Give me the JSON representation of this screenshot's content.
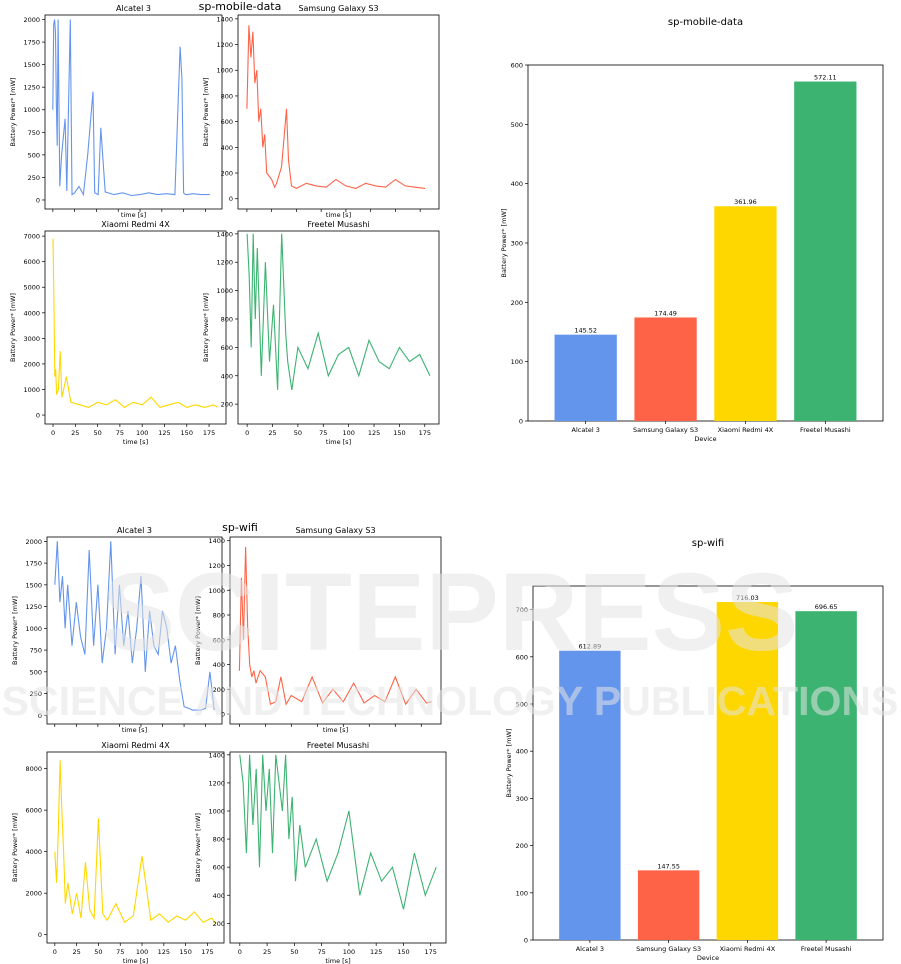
{
  "colors": {
    "blue": "#6495ED",
    "red": "#FF6347",
    "gold": "#FFD700",
    "green": "#3CB371",
    "watermark": "#d9d9d9"
  },
  "watermark": {
    "line1": "SCITEPRESS",
    "line2": "SCIENCE AND TECHNOLOGY PUBLICATIONS"
  },
  "chart_data": [
    {
      "type": "line",
      "suptitle": "sp-mobile-data",
      "title": "Alcatel 3",
      "xlabel": "time [s]",
      "ylabel": "Battery Power* [mW]",
      "color": "blue",
      "xlim": [
        -9,
        194
      ],
      "ylim": [
        -100,
        2050
      ],
      "yticks": [
        0,
        250,
        500,
        750,
        1000,
        1250,
        1500,
        1750,
        2000
      ],
      "xticks": [],
      "series": [
        {
          "x": [
            0,
            1,
            2,
            3,
            4,
            5,
            6,
            8,
            10,
            14,
            16,
            20,
            22,
            25,
            30,
            35,
            40,
            46,
            48,
            52,
            55,
            60,
            70,
            80,
            90,
            100,
            110,
            120,
            130,
            140,
            146,
            148,
            150,
            152,
            155,
            160,
            170,
            180
          ],
          "y": [
            1000,
            1950,
            2000,
            1850,
            1100,
            600,
            2000,
            150,
            500,
            900,
            100,
            2000,
            60,
            80,
            150,
            60,
            500,
            1200,
            80,
            60,
            800,
            90,
            60,
            80,
            50,
            60,
            80,
            60,
            70,
            60,
            1700,
            1350,
            80,
            60,
            60,
            70,
            60,
            60
          ]
        }
      ]
    },
    {
      "type": "line",
      "title": "Samsung Galaxy S3",
      "xlabel": "time [s]",
      "ylabel": "Battery Power* [mW]",
      "color": "red",
      "xlim": [
        -9,
        194
      ],
      "ylim": [
        -80,
        1430
      ],
      "yticks": [
        0,
        200,
        400,
        600,
        800,
        1000,
        1200,
        1400
      ],
      "xticks": [],
      "series": [
        {
          "x": [
            0,
            2,
            4,
            6,
            8,
            10,
            12,
            14,
            16,
            18,
            20,
            25,
            28,
            30,
            35,
            40,
            42,
            45,
            50,
            60,
            70,
            80,
            90,
            100,
            110,
            120,
            130,
            140,
            150,
            160,
            170,
            180
          ],
          "y": [
            700,
            1350,
            1100,
            1300,
            900,
            1000,
            600,
            700,
            400,
            500,
            200,
            150,
            90,
            120,
            250,
            700,
            300,
            100,
            80,
            120,
            100,
            90,
            150,
            100,
            80,
            120,
            100,
            90,
            150,
            100,
            90,
            80
          ]
        }
      ]
    },
    {
      "type": "line",
      "title": "Xiaomi Redmi 4X",
      "xlabel": "time [s]",
      "ylabel": "Battery Power* [mW]",
      "color": "gold",
      "xlim": [
        -9,
        194
      ],
      "ylim": [
        -350,
        7200
      ],
      "yticks": [
        0,
        1000,
        2000,
        3000,
        4000,
        5000,
        6000,
        7000
      ],
      "xticks": [
        0,
        25,
        50,
        75,
        100,
        125,
        150,
        175
      ],
      "series": [
        {
          "x": [
            0,
            1,
            2,
            3,
            4,
            6,
            8,
            10,
            15,
            20,
            30,
            40,
            50,
            60,
            70,
            80,
            90,
            100,
            110,
            120,
            130,
            140,
            150,
            160,
            170,
            180,
            185
          ],
          "y": [
            6900,
            4500,
            1500,
            1800,
            800,
            1000,
            2500,
            700,
            1500,
            500,
            400,
            300,
            500,
            400,
            600,
            300,
            500,
            400,
            700,
            300,
            400,
            500,
            300,
            400,
            300,
            400,
            300
          ]
        }
      ]
    },
    {
      "type": "line",
      "title": "Freetel Musashi",
      "xlabel": "time [s]",
      "ylabel": "Battery Power* [mW]",
      "color": "green",
      "xlim": [
        -9,
        189
      ],
      "ylim": [
        60,
        1420
      ],
      "yticks": [
        200,
        400,
        600,
        800,
        1000,
        1200,
        1400
      ],
      "xticks": [
        0,
        25,
        50,
        75,
        100,
        125,
        150,
        175
      ],
      "series": [
        {
          "x": [
            0,
            2,
            4,
            6,
            8,
            10,
            14,
            18,
            22,
            26,
            30,
            34,
            38,
            40,
            44,
            50,
            60,
            70,
            80,
            90,
            100,
            110,
            120,
            130,
            140,
            150,
            160,
            170,
            180
          ],
          "y": [
            1400,
            1100,
            600,
            1400,
            800,
            1300,
            400,
            1200,
            500,
            900,
            300,
            1400,
            700,
            500,
            300,
            600,
            450,
            700,
            400,
            550,
            600,
            400,
            650,
            500,
            450,
            600,
            500,
            550,
            400
          ]
        }
      ]
    },
    {
      "type": "bar",
      "title": "sp-mobile-data",
      "categories": [
        "Alcatel 3",
        "Samsung Galaxy S3",
        "Xiaomi Redmi 4X",
        "Freetel Musashi"
      ],
      "values": [
        145.52,
        174.49,
        361.96,
        572.11
      ],
      "value_labels": [
        "145.52",
        "174.49",
        "361.96",
        "572.11"
      ],
      "bar_colors": [
        "blue",
        "red",
        "gold",
        "green"
      ],
      "xlabel": "Device",
      "ylabel": "Battery Power* [mW]",
      "ylim": [
        0,
        600
      ],
      "yticks": [
        0,
        100,
        200,
        300,
        400,
        500,
        600
      ]
    },
    {
      "type": "line",
      "suptitle": "sp-wifi",
      "title": "Alcatel 3",
      "xlabel": "time [s]",
      "ylabel": "Battery Power* [mW]",
      "color": "blue",
      "xlim": [
        -9,
        194
      ],
      "ylim": [
        -100,
        2050
      ],
      "yticks": [
        0,
        250,
        500,
        750,
        1000,
        1250,
        1500,
        1750,
        2000
      ],
      "xticks": [],
      "series": [
        {
          "x": [
            0,
            3,
            6,
            9,
            12,
            15,
            20,
            25,
            30,
            35,
            40,
            45,
            50,
            55,
            60,
            65,
            70,
            75,
            80,
            85,
            90,
            95,
            100,
            105,
            110,
            115,
            120,
            125,
            130,
            135,
            140,
            145,
            150,
            155,
            160,
            170,
            175,
            180,
            185
          ],
          "y": [
            1500,
            2000,
            1300,
            1600,
            1000,
            1500,
            800,
            1300,
            900,
            700,
            1900,
            800,
            1500,
            600,
            1000,
            2000,
            700,
            1500,
            800,
            1200,
            600,
            1000,
            1600,
            500,
            1200,
            800,
            700,
            1200,
            1000,
            600,
            800,
            400,
            100,
            80,
            60,
            60,
            80,
            500,
            60
          ]
        }
      ]
    },
    {
      "type": "line",
      "title": "Samsung Galaxy S3",
      "xlabel": "time [s]",
      "ylabel": "Battery Power* [mW]",
      "color": "red",
      "xlim": [
        -9,
        194
      ],
      "ylim": [
        -80,
        1430
      ],
      "yticks": [
        0,
        200,
        400,
        600,
        800,
        1000,
        1200,
        1400
      ],
      "xticks": [],
      "series": [
        {
          "x": [
            0,
            2,
            4,
            6,
            8,
            10,
            12,
            14,
            16,
            20,
            25,
            30,
            35,
            40,
            45,
            50,
            60,
            70,
            80,
            90,
            100,
            110,
            120,
            130,
            140,
            150,
            160,
            170,
            180,
            185
          ],
          "y": [
            350,
            1100,
            600,
            1350,
            700,
            400,
            300,
            350,
            250,
            350,
            300,
            80,
            100,
            300,
            80,
            150,
            100,
            300,
            90,
            200,
            100,
            250,
            90,
            150,
            100,
            300,
            80,
            200,
            90,
            100
          ]
        }
      ]
    },
    {
      "type": "line",
      "title": "Xiaomi Redmi 4X",
      "xlabel": "time [s]",
      "ylabel": "Battery Power* [mW]",
      "color": "gold",
      "xlim": [
        -9,
        194
      ],
      "ylim": [
        -400,
        8800
      ],
      "yticks": [
        0,
        2000,
        4000,
        6000,
        8000
      ],
      "xticks": [
        0,
        25,
        50,
        75,
        100,
        125,
        150,
        175
      ],
      "series": [
        {
          "x": [
            0,
            2,
            4,
            6,
            8,
            10,
            12,
            15,
            20,
            25,
            30,
            35,
            40,
            45,
            50,
            55,
            60,
            70,
            80,
            90,
            100,
            110,
            120,
            130,
            140,
            150,
            160,
            170,
            180,
            185
          ],
          "y": [
            4000,
            2500,
            5000,
            8400,
            6000,
            4000,
            1500,
            2500,
            1000,
            2000,
            800,
            3500,
            1200,
            800,
            5600,
            1000,
            700,
            1500,
            600,
            900,
            3800,
            700,
            1000,
            600,
            900,
            700,
            1100,
            600,
            800,
            500
          ]
        }
      ]
    },
    {
      "type": "line",
      "title": "Freetel Musashi",
      "xlabel": "time [s]",
      "ylabel": "Battery Power* [mW]",
      "color": "green",
      "xlim": [
        -9,
        189
      ],
      "ylim": [
        60,
        1420
      ],
      "yticks": [
        200,
        400,
        600,
        800,
        1000,
        1200,
        1400
      ],
      "xticks": [
        0,
        25,
        50,
        75,
        100,
        125,
        150,
        175
      ],
      "series": [
        {
          "x": [
            0,
            3,
            6,
            9,
            12,
            15,
            18,
            21,
            24,
            27,
            30,
            33,
            36,
            39,
            42,
            45,
            48,
            51,
            55,
            60,
            70,
            80,
            90,
            100,
            110,
            120,
            130,
            140,
            150,
            160,
            170,
            180
          ],
          "y": [
            1400,
            1200,
            700,
            1400,
            900,
            1300,
            600,
            1400,
            1000,
            1300,
            700,
            1400,
            1200,
            1000,
            1400,
            800,
            1100,
            500,
            900,
            600,
            800,
            500,
            700,
            1000,
            400,
            700,
            500,
            600,
            300,
            700,
            400,
            600
          ]
        }
      ]
    },
    {
      "type": "bar",
      "title": "sp-wifi",
      "categories": [
        "Alcatel 3",
        "Samsung Galaxy S3",
        "Xiaomi Redmi 4X",
        "Freetel Musashi"
      ],
      "values": [
        612.89,
        147.55,
        716.03,
        696.65
      ],
      "value_labels": [
        "612.89",
        "147.55",
        "716.03",
        "696.65"
      ],
      "bar_colors": [
        "blue",
        "red",
        "gold",
        "green"
      ],
      "xlabel": "Device",
      "ylabel": "Battery Power* [mW]",
      "ylim": [
        0,
        750
      ],
      "yticks": [
        0,
        100,
        200,
        300,
        400,
        500,
        600,
        700
      ]
    }
  ]
}
